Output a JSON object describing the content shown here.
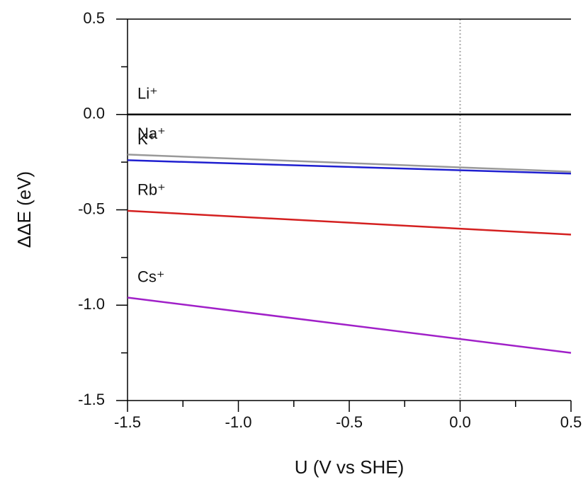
{
  "chart_data": {
    "type": "line",
    "x_label": "U (V vs SHE)",
    "y_label": "ΔΔE (eV)",
    "x": [
      -1.5,
      0.5
    ],
    "series": [
      {
        "name": "Li⁺",
        "color": "#000000",
        "values": [
          0.0,
          0.0
        ]
      },
      {
        "name": "Na⁺",
        "color": "#999999",
        "values": [
          -0.21,
          -0.3
        ]
      },
      {
        "name": "K⁺",
        "color": "#1f1fd0",
        "values": [
          -0.24,
          -0.31
        ]
      },
      {
        "name": "Rb⁺",
        "color": "#d42020",
        "values": [
          -0.505,
          -0.63
        ]
      },
      {
        "name": "Cs⁺",
        "color": "#a020c8",
        "values": [
          -0.96,
          -1.25
        ]
      }
    ],
    "xlim": [
      -1.5,
      0.5
    ],
    "ylim": [
      -1.5,
      0.5
    ],
    "xticks": [
      {
        "value": -1.5,
        "label": "-1.5"
      },
      {
        "value": -1.0,
        "label": "-1.0"
      },
      {
        "value": -0.5,
        "label": "-0.5"
      },
      {
        "value": 0.0,
        "label": "0.0"
      },
      {
        "value": 0.5,
        "label": "0.5"
      }
    ],
    "yticks": [
      {
        "value": 0.5,
        "label": "0.5"
      },
      {
        "value": 0.0,
        "label": "0.0"
      },
      {
        "value": -0.5,
        "label": "-0.5"
      },
      {
        "value": -1.0,
        "label": "-1.0"
      },
      {
        "value": -1.5,
        "label": "-1.5"
      }
    ],
    "xminorticks": [
      -1.25,
      -0.75,
      -0.25,
      0.25
    ],
    "yminorticks": [
      0.25,
      -0.25,
      -0.75,
      -1.25
    ],
    "vline": 0.0
  }
}
